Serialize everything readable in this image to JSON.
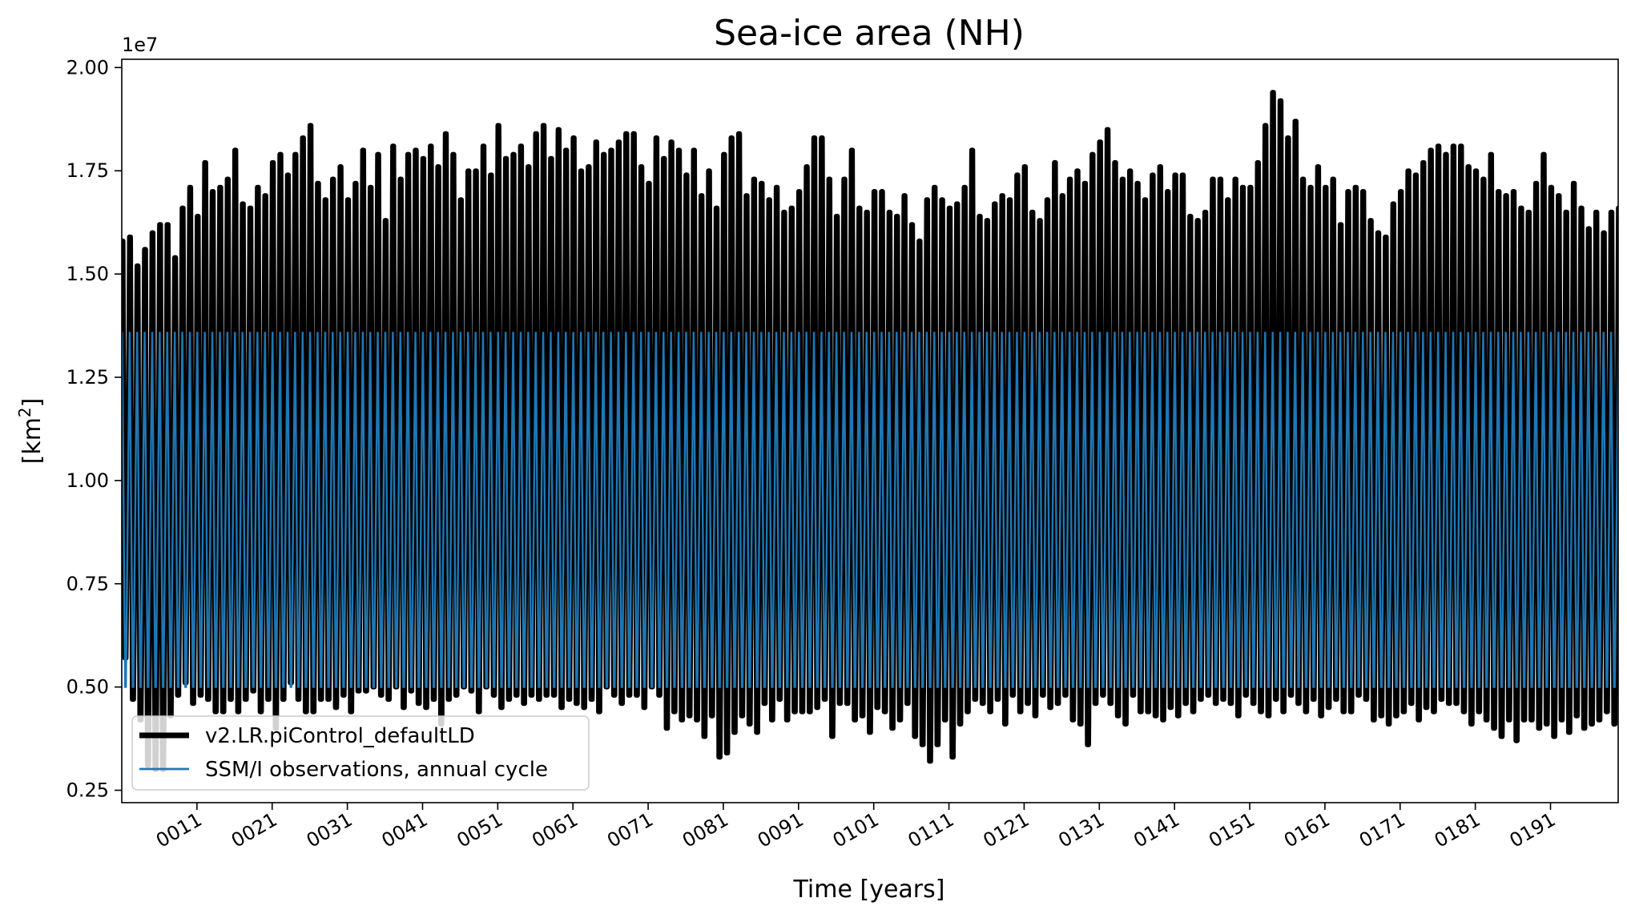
{
  "chart_data": {
    "type": "line",
    "title": "Sea-ice area (NH)",
    "xlabel": "Time [years]",
    "ylabel": "[km²]",
    "ylabel_base": "[km",
    "ylabel_sup": "2",
    "ylabel_close": "]",
    "y_offset_label": "1e7",
    "ylim": [
      0.22,
      2.02
    ],
    "xlim": [
      1,
      200
    ],
    "y_ticks": [
      0.25,
      0.5,
      0.75,
      1.0,
      1.25,
      1.5,
      1.75,
      2.0
    ],
    "y_tick_labels": [
      "0.25",
      "0.50",
      "0.75",
      "1.00",
      "1.25",
      "1.50",
      "1.75",
      "2.00"
    ],
    "x_ticks": [
      11,
      21,
      31,
      41,
      51,
      61,
      71,
      81,
      91,
      101,
      111,
      121,
      131,
      141,
      151,
      161,
      171,
      181,
      191
    ],
    "x_tick_labels": [
      "0011",
      "0021",
      "0031",
      "0041",
      "0051",
      "0061",
      "0071",
      "0081",
      "0091",
      "0101",
      "0111",
      "0121",
      "0131",
      "0141",
      "0151",
      "0161",
      "0171",
      "0181",
      "0191"
    ],
    "grid": false,
    "legend_position": "lower-left",
    "series": [
      {
        "name": "v2.LR.piControl_defaultLD",
        "color": "#000000",
        "annual_max_1e7": [
          1.58,
          1.59,
          1.52,
          1.56,
          1.6,
          1.62,
          1.62,
          1.54,
          1.66,
          1.71,
          1.64,
          1.77,
          1.7,
          1.71,
          1.73,
          1.8,
          1.67,
          1.66,
          1.71,
          1.69,
          1.77,
          1.79,
          1.74,
          1.79,
          1.83,
          1.86,
          1.72,
          1.68,
          1.73,
          1.76,
          1.68,
          1.72,
          1.8,
          1.71,
          1.79,
          1.63,
          1.81,
          1.73,
          1.79,
          1.8,
          1.78,
          1.81,
          1.76,
          1.84,
          1.79,
          1.68,
          1.75,
          1.75,
          1.81,
          1.74,
          1.86,
          1.78,
          1.79,
          1.81,
          1.76,
          1.84,
          1.86,
          1.78,
          1.85,
          1.8,
          1.83,
          1.75,
          1.76,
          1.82,
          1.79,
          1.8,
          1.82,
          1.84,
          1.84,
          1.76,
          1.72,
          1.83,
          1.78,
          1.82,
          1.8,
          1.74,
          1.8,
          1.69,
          1.75,
          1.66,
          1.79,
          1.83,
          1.84,
          1.69,
          1.73,
          1.72,
          1.68,
          1.71,
          1.65,
          1.66,
          1.7,
          1.76,
          1.83,
          1.83,
          1.73,
          1.64,
          1.73,
          1.8,
          1.66,
          1.65,
          1.7,
          1.7,
          1.65,
          1.64,
          1.69,
          1.62,
          1.58,
          1.68,
          1.71,
          1.68,
          1.66,
          1.67,
          1.71,
          1.8,
          1.64,
          1.63,
          1.67,
          1.69,
          1.68,
          1.74,
          1.76,
          1.65,
          1.63,
          1.68,
          1.77,
          1.69,
          1.73,
          1.75,
          1.72,
          1.79,
          1.82,
          1.85,
          1.77,
          1.73,
          1.75,
          1.72,
          1.68,
          1.74,
          1.76,
          1.7,
          1.74,
          1.74,
          1.64,
          1.63,
          1.65,
          1.73,
          1.73,
          1.68,
          1.73,
          1.71,
          1.71,
          1.77,
          1.86,
          1.94,
          1.92,
          1.83,
          1.87,
          1.73,
          1.71,
          1.76,
          1.71,
          1.73,
          1.62,
          1.7,
          1.71,
          1.7,
          1.63,
          1.6,
          1.59,
          1.67,
          1.7,
          1.75,
          1.74,
          1.77,
          1.8,
          1.81,
          1.79,
          1.81,
          1.81,
          1.76,
          1.75,
          1.73,
          1.79,
          1.7,
          1.69,
          1.7,
          1.66,
          1.65,
          1.72,
          1.79,
          1.71,
          1.69,
          1.65,
          1.72,
          1.66,
          1.61,
          1.65,
          1.6,
          1.65,
          1.66
        ],
        "annual_min_1e7": [
          0.57,
          0.47,
          0.42,
          0.31,
          0.3,
          0.3,
          0.43,
          0.48,
          0.51,
          0.46,
          0.48,
          0.47,
          0.44,
          0.44,
          0.47,
          0.44,
          0.47,
          0.49,
          0.44,
          0.47,
          0.4,
          0.47,
          0.51,
          0.47,
          0.44,
          0.44,
          0.47,
          0.47,
          0.45,
          0.48,
          0.44,
          0.49,
          0.49,
          0.5,
          0.48,
          0.47,
          0.5,
          0.45,
          0.49,
          0.46,
          0.45,
          0.47,
          0.41,
          0.47,
          0.48,
          0.5,
          0.49,
          0.44,
          0.5,
          0.48,
          0.45,
          0.47,
          0.48,
          0.46,
          0.48,
          0.47,
          0.48,
          0.48,
          0.45,
          0.47,
          0.46,
          0.45,
          0.47,
          0.44,
          0.5,
          0.48,
          0.46,
          0.48,
          0.48,
          0.45,
          0.5,
          0.48,
          0.4,
          0.44,
          0.42,
          0.43,
          0.42,
          0.38,
          0.43,
          0.33,
          0.34,
          0.39,
          0.43,
          0.41,
          0.39,
          0.46,
          0.42,
          0.47,
          0.42,
          0.44,
          0.44,
          0.44,
          0.45,
          0.47,
          0.38,
          0.46,
          0.46,
          0.42,
          0.43,
          0.39,
          0.45,
          0.44,
          0.4,
          0.42,
          0.46,
          0.38,
          0.36,
          0.32,
          0.36,
          0.42,
          0.33,
          0.41,
          0.44,
          0.47,
          0.46,
          0.44,
          0.47,
          0.41,
          0.48,
          0.44,
          0.46,
          0.43,
          0.48,
          0.45,
          0.46,
          0.48,
          0.42,
          0.41,
          0.36,
          0.46,
          0.48,
          0.46,
          0.43,
          0.41,
          0.48,
          0.44,
          0.44,
          0.43,
          0.42,
          0.45,
          0.43,
          0.46,
          0.44,
          0.47,
          0.48,
          0.46,
          0.47,
          0.46,
          0.43,
          0.48,
          0.46,
          0.44,
          0.43,
          0.47,
          0.44,
          0.48,
          0.46,
          0.44,
          0.47,
          0.43,
          0.45,
          0.47,
          0.44,
          0.44,
          0.48,
          0.47,
          0.42,
          0.43,
          0.41,
          0.43,
          0.44,
          0.46,
          0.42,
          0.45,
          0.44,
          0.47,
          0.46,
          0.46,
          0.44,
          0.41,
          0.44,
          0.42,
          0.4,
          0.38,
          0.42,
          0.37,
          0.42,
          0.42,
          0.4,
          0.41,
          0.38,
          0.42,
          0.39,
          0.43,
          0.4,
          0.41,
          0.42,
          0.44,
          0.41,
          0.42
        ]
      },
      {
        "name": "SSM/I observations, annual cycle",
        "color": "#1f77b4",
        "annual_max_1e7": 1.36,
        "annual_min_1e7": 0.5
      }
    ]
  }
}
